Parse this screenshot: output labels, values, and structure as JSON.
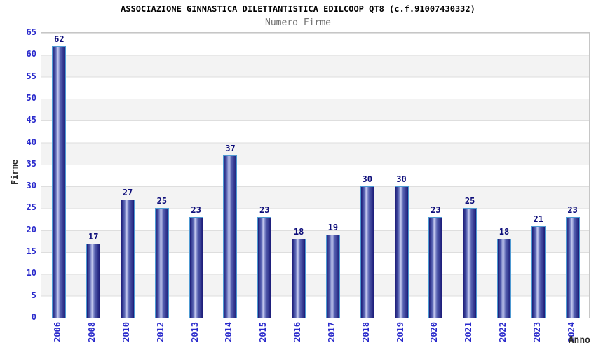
{
  "header": {
    "title": "ASSOCIAZIONE GINNASTICA DILETTANTISTICA EDILCOOP QT8 (c.f.91007430332)",
    "subtitle": "Numero Firme"
  },
  "chart_data": {
    "type": "bar",
    "title": "ASSOCIAZIONE GINNASTICA DILETTANTISTICA EDILCOOP QT8 (c.f.91007430332)",
    "subtitle": "Numero Firme",
    "categories": [
      "2006",
      "2008",
      "2010",
      "2012",
      "2013",
      "2014",
      "2015",
      "2016",
      "2017",
      "2018",
      "2019",
      "2020",
      "2021",
      "2022",
      "2023",
      "2024"
    ],
    "values": [
      62,
      17,
      27,
      25,
      23,
      37,
      23,
      18,
      19,
      30,
      30,
      23,
      25,
      18,
      21,
      23
    ],
    "xlabel": "Anno",
    "ylabel": "Firme",
    "ylim": [
      0,
      65
    ],
    "y_ticks": [
      0,
      5,
      10,
      15,
      20,
      25,
      30,
      35,
      40,
      45,
      50,
      55,
      60,
      65
    ],
    "grid": true,
    "bands_alternating": true,
    "legend_position": "none",
    "bar_value_labels": true,
    "colors": {
      "tick_label": "#2a2acc",
      "value_label": "#0d0d7a",
      "bar_border": "#4e9ad2",
      "bar_dark": "#1b1b78",
      "bar_mid": "#5560b0",
      "bar_light": "#c6cbf0",
      "band": "#f3f3f3",
      "gridline": "#dedede",
      "plot_border": "#c6c6c6",
      "title": "#000000",
      "subtitle": "#707070",
      "axis_title": "#2b2b2b"
    }
  }
}
